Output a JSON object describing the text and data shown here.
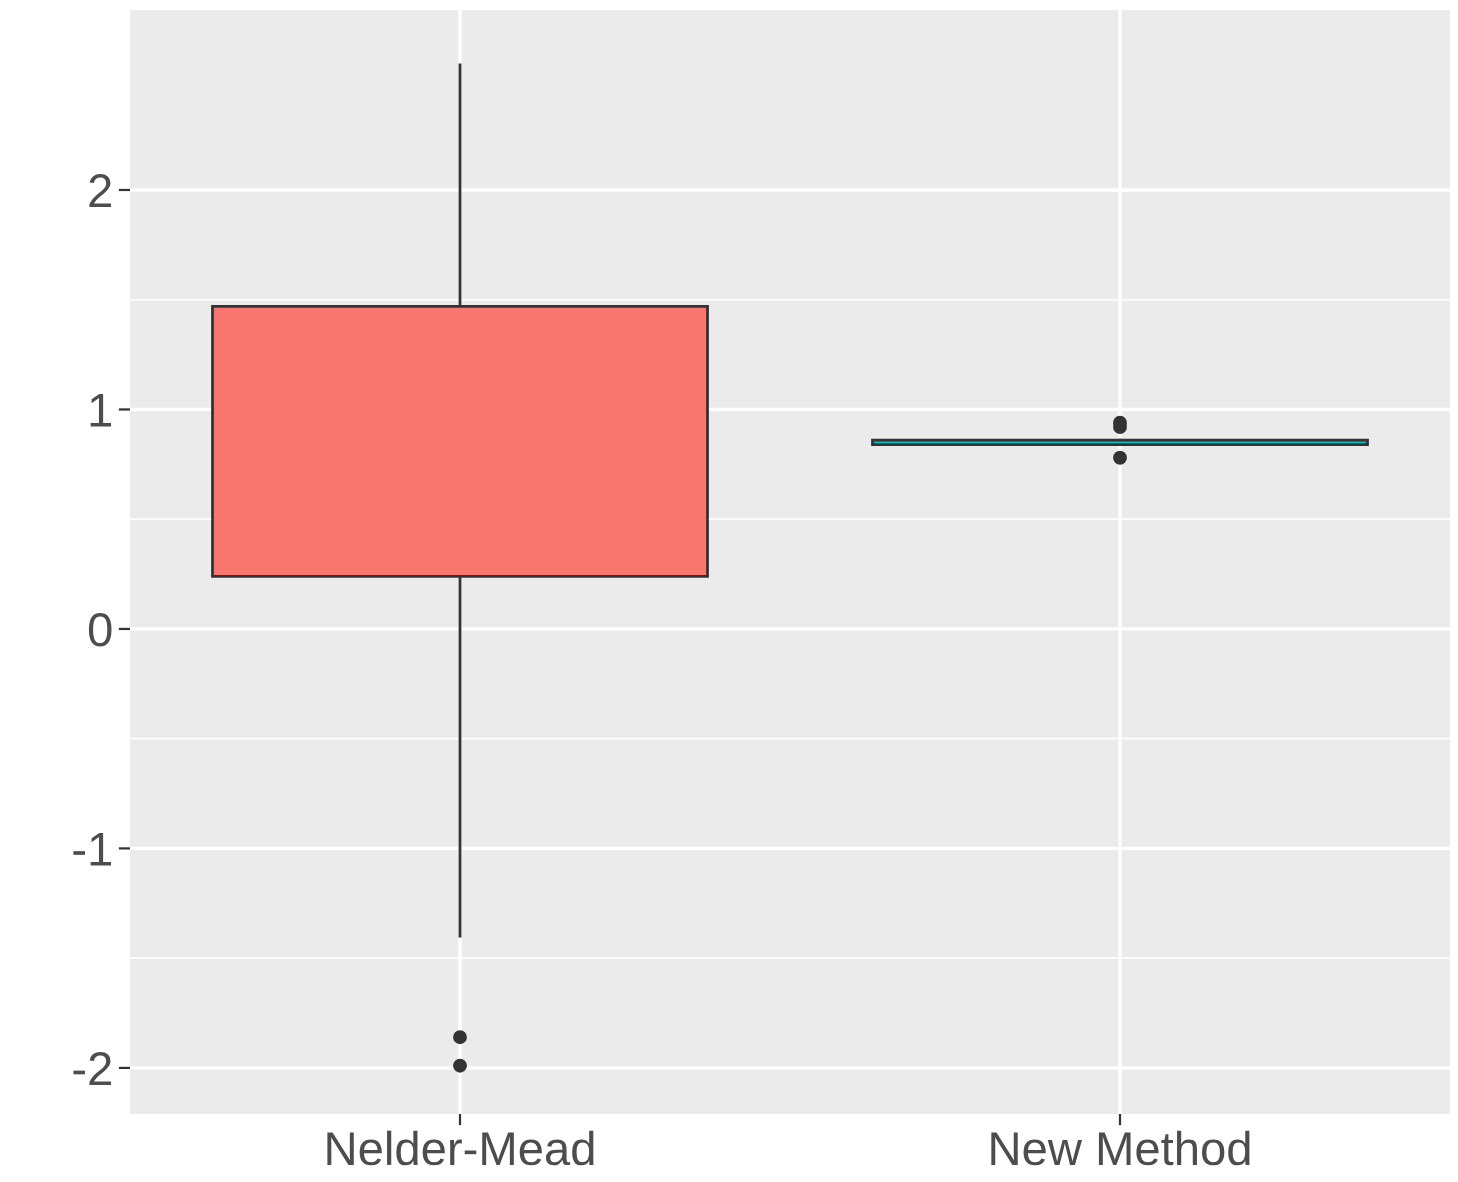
{
  "chart_data": {
    "type": "box",
    "categories": [
      "Nelder-Mead",
      "New Method"
    ],
    "boxes": [
      {
        "low": -1.4,
        "q1": 0.24,
        "median": 0.96,
        "q3": 1.47,
        "high": 2.57,
        "outliers": [
          -1.86,
          -1.99
        ]
      },
      {
        "low": 0.84,
        "q1": 0.84,
        "median": 0.85,
        "q3": 0.86,
        "high": 0.86,
        "outliers": [
          0.92,
          0.94,
          0.78
        ]
      }
    ],
    "colors": [
      "#f8766d",
      "#00bfc4"
    ],
    "ylim": [
      -2.21,
      2.82
    ],
    "yticks": [
      -2,
      -1,
      0,
      1,
      2
    ],
    "grid": true
  }
}
